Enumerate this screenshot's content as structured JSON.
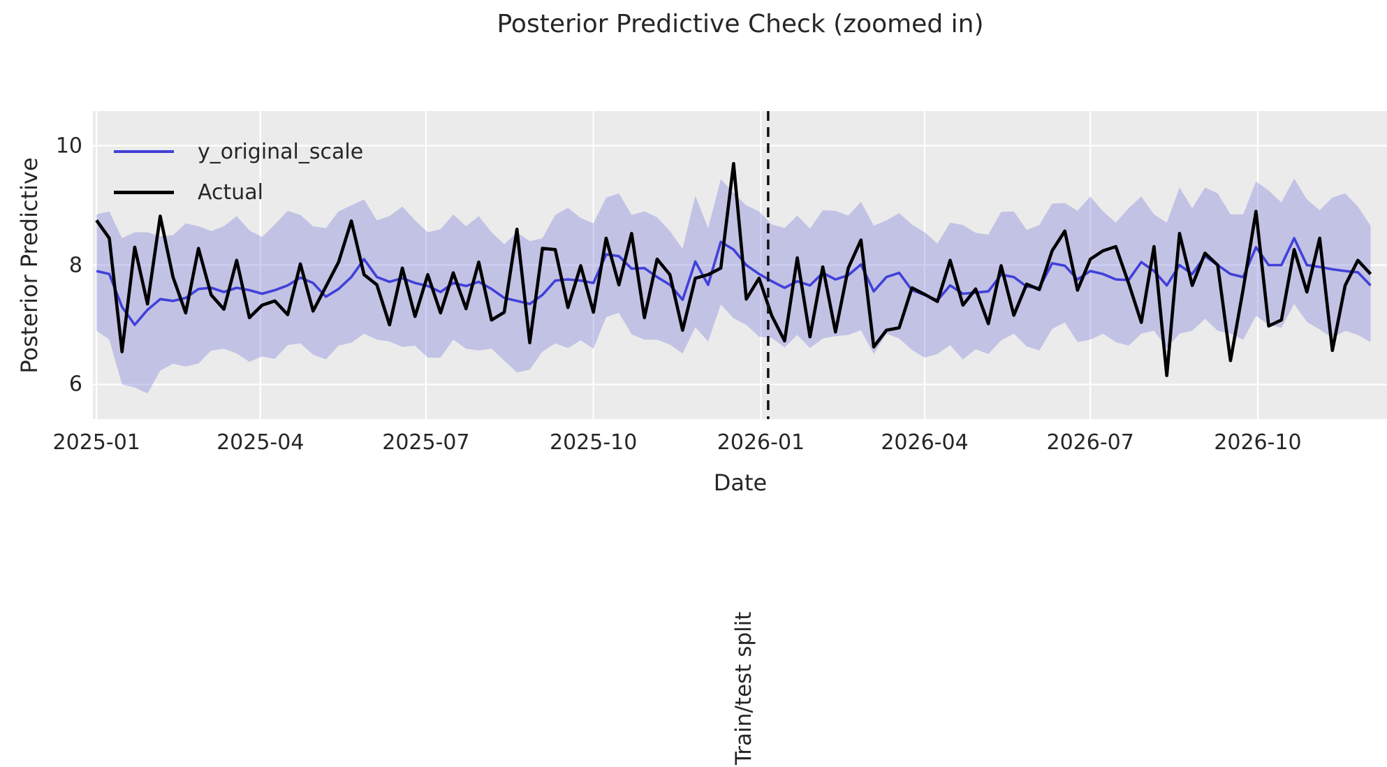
{
  "title": "Posterior Predictive Check (zoomed in)",
  "axes": {
    "x_label": "Date",
    "y_label": "Posterior Predictive"
  },
  "legend": {
    "items": [
      {
        "label": "y_original_scale",
        "color": "#4040d9"
      },
      {
        "label": "Actual",
        "color": "#000000"
      }
    ]
  },
  "annotation": {
    "split_label": "Train/test split",
    "split_date": "2026-01-05"
  },
  "colors": {
    "predicted_line": "#4040d9",
    "actual_line": "#000000",
    "band_fill": "rgba(100,100,215,0.30)",
    "grid": "#ffffff",
    "plot_bg": "#ebebeb",
    "split_line": "#111111",
    "text": "#262626"
  },
  "chart_data": {
    "type": "line",
    "title": "Posterior Predictive Check (zoomed in)",
    "xlabel": "Date",
    "ylabel": "Posterior Predictive",
    "grid": true,
    "legend_position": "upper left",
    "ylim": [
      5.42,
      10.58
    ],
    "y_ticks": [
      6,
      8,
      10
    ],
    "x_ticks": [
      {
        "date": "2025-01-01",
        "label": "2025-01"
      },
      {
        "date": "2025-04-01",
        "label": "2025-04"
      },
      {
        "date": "2025-07-01",
        "label": "2025-07"
      },
      {
        "date": "2025-10-01",
        "label": "2025-10"
      },
      {
        "date": "2026-01-01",
        "label": "2026-01"
      },
      {
        "date": "2026-04-01",
        "label": "2026-04"
      },
      {
        "date": "2026-07-01",
        "label": "2026-07"
      },
      {
        "date": "2026-10-01",
        "label": "2026-10"
      }
    ],
    "split_date": "2026-01-05",
    "x": [
      "2025-01-01",
      "2025-01-08",
      "2025-01-15",
      "2025-01-22",
      "2025-01-29",
      "2025-02-05",
      "2025-02-12",
      "2025-02-19",
      "2025-02-26",
      "2025-03-05",
      "2025-03-12",
      "2025-03-19",
      "2025-03-26",
      "2025-04-02",
      "2025-04-09",
      "2025-04-16",
      "2025-04-23",
      "2025-04-30",
      "2025-05-07",
      "2025-05-14",
      "2025-05-21",
      "2025-05-28",
      "2025-06-04",
      "2025-06-11",
      "2025-06-18",
      "2025-06-25",
      "2025-07-02",
      "2025-07-09",
      "2025-07-16",
      "2025-07-23",
      "2025-07-30",
      "2025-08-06",
      "2025-08-13",
      "2025-08-20",
      "2025-08-27",
      "2025-09-03",
      "2025-09-10",
      "2025-09-17",
      "2025-09-24",
      "2025-10-01",
      "2025-10-08",
      "2025-10-15",
      "2025-10-22",
      "2025-10-29",
      "2025-11-05",
      "2025-11-12",
      "2025-11-19",
      "2025-11-26",
      "2025-12-03",
      "2025-12-10",
      "2025-12-17",
      "2025-12-24",
      "2025-12-31",
      "2026-01-07",
      "2026-01-14",
      "2026-01-21",
      "2026-01-28",
      "2026-02-04",
      "2026-02-11",
      "2026-02-18",
      "2026-02-25",
      "2026-03-04",
      "2026-03-11",
      "2026-03-18",
      "2026-03-25",
      "2026-04-01",
      "2026-04-08",
      "2026-04-15",
      "2026-04-22",
      "2026-04-29",
      "2026-05-06",
      "2026-05-13",
      "2026-05-20",
      "2026-05-27",
      "2026-06-03",
      "2026-06-10",
      "2026-06-17",
      "2026-06-24",
      "2026-07-01",
      "2026-07-08",
      "2026-07-15",
      "2026-07-22",
      "2026-07-29",
      "2026-08-05",
      "2026-08-12",
      "2026-08-19",
      "2026-08-26",
      "2026-09-02",
      "2026-09-09",
      "2026-09-16",
      "2026-09-23",
      "2026-09-30",
      "2026-10-07",
      "2026-10-14",
      "2026-10-21",
      "2026-10-28",
      "2026-11-04",
      "2026-11-11",
      "2026-11-18",
      "2026-11-25",
      "2026-12-02"
    ],
    "series": [
      {
        "name": "y_original_scale",
        "values": [
          7.9,
          7.85,
          7.3,
          7.0,
          7.25,
          7.43,
          7.4,
          7.45,
          7.6,
          7.62,
          7.55,
          7.62,
          7.58,
          7.52,
          7.58,
          7.66,
          7.79,
          7.7,
          7.47,
          7.6,
          7.8,
          8.1,
          7.8,
          7.72,
          7.78,
          7.7,
          7.65,
          7.55,
          7.7,
          7.65,
          7.72,
          7.6,
          7.45,
          7.4,
          7.35,
          7.5,
          7.74,
          7.76,
          7.74,
          7.7,
          8.18,
          8.15,
          7.94,
          7.95,
          7.8,
          7.67,
          7.42,
          8.06,
          7.67,
          8.39,
          8.26,
          8.0,
          7.85,
          7.73,
          7.62,
          7.73,
          7.66,
          7.87,
          7.76,
          7.83,
          8.01,
          7.56,
          7.8,
          7.87,
          7.58,
          7.5,
          7.41,
          7.66,
          7.52,
          7.54,
          7.56,
          7.84,
          7.8,
          7.64,
          7.62,
          8.03,
          7.99,
          7.76,
          7.9,
          7.85,
          7.76,
          7.75,
          8.05,
          7.9,
          7.66,
          8.0,
          7.85,
          8.15,
          8.0,
          7.85,
          7.8,
          8.3,
          8.0,
          8.0,
          8.45,
          8.0,
          7.97,
          7.93,
          7.9,
          7.88,
          7.66
        ]
      },
      {
        "name": "Actual",
        "values": [
          8.75,
          8.45,
          6.55,
          8.3,
          7.35,
          8.82,
          7.8,
          7.2,
          8.28,
          7.5,
          7.26,
          8.08,
          7.12,
          7.33,
          7.4,
          7.17,
          8.02,
          7.23,
          7.64,
          8.05,
          8.74,
          7.84,
          7.67,
          7.0,
          7.95,
          7.14,
          7.84,
          7.2,
          7.87,
          7.27,
          8.05,
          7.08,
          7.21,
          8.6,
          6.7,
          8.28,
          8.26,
          7.29,
          7.99,
          7.21,
          8.45,
          7.67,
          8.53,
          7.12,
          8.1,
          7.84,
          6.91,
          7.78,
          7.84,
          7.95,
          9.7,
          7.43,
          7.78,
          7.15,
          6.73,
          8.12,
          6.8,
          7.97,
          6.88,
          7.95,
          8.42,
          6.63,
          6.91,
          6.95,
          7.62,
          7.51,
          7.39,
          8.08,
          7.33,
          7.6,
          7.02,
          7.99,
          7.16,
          7.68,
          7.59,
          8.24,
          8.57,
          7.58,
          8.1,
          8.24,
          8.31,
          7.7,
          7.04,
          8.31,
          6.15,
          8.53,
          7.66,
          8.2,
          8.0,
          6.4,
          7.6,
          8.9,
          6.98,
          7.08,
          8.26,
          7.55,
          8.45,
          6.57,
          7.66,
          8.08,
          7.85
        ]
      }
    ],
    "band": {
      "name": "posterior-predictive-hdi",
      "lower": [
        6.9,
        6.75,
        6.0,
        5.95,
        5.85,
        6.23,
        6.35,
        6.3,
        6.35,
        6.57,
        6.6,
        6.52,
        6.38,
        6.47,
        6.43,
        6.66,
        6.69,
        6.5,
        6.42,
        6.65,
        6.7,
        6.85,
        6.75,
        6.72,
        6.63,
        6.65,
        6.45,
        6.45,
        6.75,
        6.6,
        6.57,
        6.6,
        6.4,
        6.2,
        6.25,
        6.55,
        6.69,
        6.61,
        6.74,
        6.6,
        7.13,
        7.2,
        6.84,
        6.75,
        6.75,
        6.67,
        6.52,
        6.96,
        6.72,
        7.34,
        7.11,
        7.0,
        6.8,
        6.78,
        6.62,
        6.83,
        6.61,
        6.77,
        6.81,
        6.83,
        6.91,
        6.51,
        6.85,
        6.77,
        6.58,
        6.45,
        6.51,
        6.66,
        6.42,
        6.59,
        6.51,
        6.74,
        6.85,
        6.64,
        6.57,
        6.93,
        7.04,
        6.71,
        6.75,
        6.85,
        6.71,
        6.65,
        6.85,
        6.9,
        6.61,
        6.85,
        6.9,
        7.1,
        6.9,
        6.85,
        6.75,
        7.15,
        7.0,
        6.95,
        7.35,
        7.05,
        6.92,
        6.78,
        6.9,
        6.83,
        6.71
      ],
      "upper": [
        8.85,
        8.9,
        8.45,
        8.55,
        8.55,
        8.48,
        8.5,
        8.7,
        8.65,
        8.57,
        8.65,
        8.82,
        8.58,
        8.47,
        8.68,
        8.91,
        8.84,
        8.65,
        8.62,
        8.9,
        9.0,
        9.1,
        8.75,
        8.82,
        8.98,
        8.75,
        8.55,
        8.6,
        8.85,
        8.65,
        8.82,
        8.55,
        8.35,
        8.55,
        8.4,
        8.45,
        8.84,
        8.96,
        8.79,
        8.7,
        9.13,
        9.2,
        8.84,
        8.9,
        8.8,
        8.57,
        8.27,
        9.16,
        8.62,
        9.44,
        9.21,
        9.0,
        8.9,
        8.68,
        8.62,
        8.83,
        8.61,
        8.92,
        8.91,
        8.83,
        9.06,
        8.66,
        8.75,
        8.87,
        8.68,
        8.55,
        8.36,
        8.71,
        8.67,
        8.54,
        8.51,
        8.89,
        8.9,
        8.59,
        8.67,
        9.03,
        9.04,
        8.91,
        9.15,
        8.9,
        8.71,
        8.95,
        9.15,
        8.85,
        8.71,
        9.3,
        8.95,
        9.3,
        9.2,
        8.85,
        8.85,
        9.4,
        9.25,
        9.05,
        9.45,
        9.1,
        8.92,
        9.13,
        9.2,
        8.98,
        8.66
      ]
    }
  }
}
